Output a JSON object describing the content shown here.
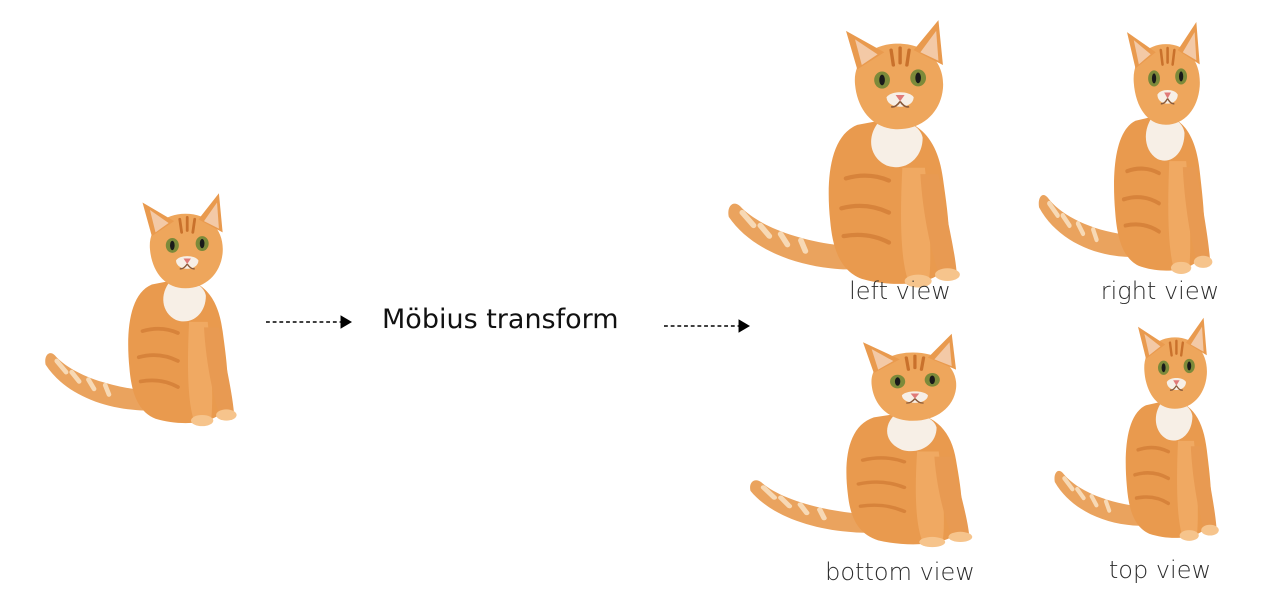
{
  "process": {
    "label": "Möbius transform",
    "arrow_icon": "dashed-arrow-right-icon"
  },
  "views": [
    {
      "label": "left view"
    },
    {
      "label": "right view"
    },
    {
      "label": "bottom view"
    },
    {
      "label": "top view"
    }
  ],
  "colors": {
    "fur": "#e99a4e",
    "fur_dark": "#c9712c",
    "fur_light": "#f6c48c",
    "chest": "#f7efe6",
    "eye": "#7c8a3a",
    "text": "#2b2b2b",
    "arrow": "#000000"
  }
}
